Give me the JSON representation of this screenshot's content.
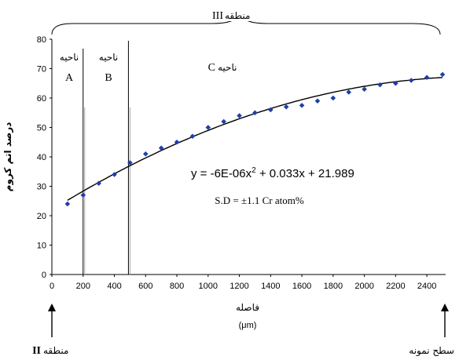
{
  "chart_data": {
    "type": "scatter",
    "title": "",
    "xlabel": "فاصله",
    "xunit": "(μm)",
    "ylabel": "درصد اتم کروم",
    "xlim": [
      0,
      2500
    ],
    "ylim": [
      0,
      80
    ],
    "xticks": [
      0,
      200,
      400,
      600,
      800,
      1000,
      1200,
      1400,
      1600,
      1800,
      2000,
      2200,
      2400
    ],
    "yticks": [
      0,
      10,
      20,
      30,
      40,
      50,
      60,
      70,
      80
    ],
    "grid": false,
    "series": [
      {
        "x": [
          100,
          200,
          300,
          400,
          500,
          600,
          700,
          800,
          900,
          1000,
          1100,
          1200,
          1300,
          1400,
          1500,
          1600,
          1700,
          1800,
          1900,
          2000,
          2100,
          2200,
          2300,
          2400,
          2500
        ],
        "y": [
          24,
          27,
          31,
          34,
          38,
          41,
          43,
          45,
          47,
          50,
          52,
          54,
          55,
          56,
          57,
          57.5,
          59,
          60,
          62,
          63,
          64.5,
          65,
          66,
          67,
          68
        ]
      }
    ],
    "trendline": {
      "a": -6e-06,
      "b": 0.033,
      "c": 21.989,
      "x_range": [
        100,
        2500
      ]
    },
    "equation_text": "y = -6E-06x",
    "equation_sup": "2",
    "equation_rest": " + 0.033x + 21.989",
    "sd_text": "S.D = ±1.1 Cr atom%",
    "zone_lines_x": [
      200,
      490
    ],
    "zones": [
      {
        "label": "ناحیه",
        "letter": "A"
      },
      {
        "label": "ناحیه",
        "letter": "B"
      },
      {
        "label": "ناحیه",
        "letter": "C"
      }
    ],
    "region_top_label": "منطقه",
    "region_top_numeral": "III",
    "bottom_left_label": "منطقه",
    "bottom_left_numeral": "II",
    "bottom_right_label": "سطح نمونه"
  }
}
